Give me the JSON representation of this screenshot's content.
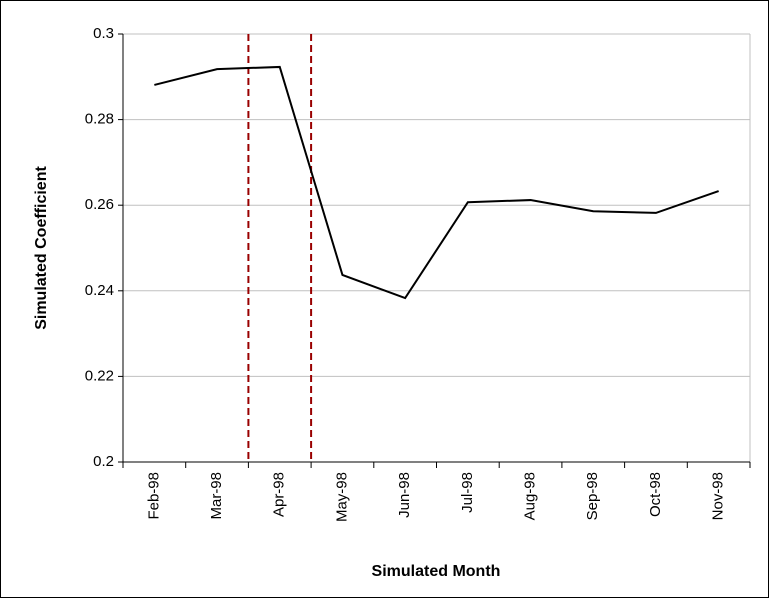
{
  "chart_data": {
    "type": "line",
    "x_label": "Simulated Month",
    "y_label": "Simulated Coefficient",
    "categories": [
      "Feb-98",
      "Mar-98",
      "Apr-98",
      "May-98",
      "Jun-98",
      "Jul-98",
      "Aug-98",
      "Sep-98",
      "Oct-98",
      "Nov-98"
    ],
    "values": [
      0.2881,
      0.2918,
      0.2923,
      0.2437,
      0.2383,
      0.2607,
      0.2612,
      0.2586,
      0.2582,
      0.2633
    ],
    "color": "#000000",
    "ylim": [
      0.2,
      0.3
    ],
    "yticks": [
      0.2,
      0.22,
      0.24,
      0.26,
      0.28,
      0.3
    ],
    "grid": true,
    "highlight_category_index": 2,
    "highlight_color": "#990000"
  }
}
